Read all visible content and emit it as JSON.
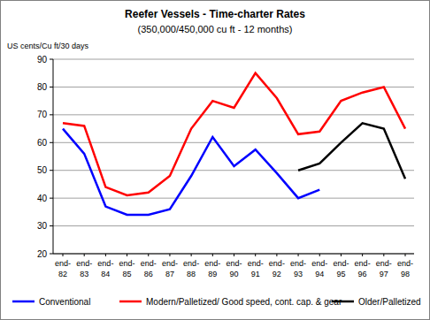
{
  "chart_data": {
    "type": "line",
    "title": "Reefer Vessels - Time-charter Rates",
    "subtitle": "(350,000/450,000 cu ft - 12 months)",
    "y_label": "US cents/Cu ft/30 days",
    "categories": [
      "end-82",
      "end-83",
      "end-84",
      "end-85",
      "end-86",
      "end-87",
      "end-88",
      "end-89",
      "end-90",
      "end-91",
      "end-92",
      "end-93",
      "end-94",
      "end-95",
      "end-96",
      "end-97",
      "end-98"
    ],
    "series": [
      {
        "name": "Conventional",
        "color": "#0000ff",
        "values": [
          65,
          56,
          37,
          34,
          34,
          36,
          48,
          62,
          51.5,
          57.5,
          49,
          40,
          43,
          null,
          null,
          null,
          null
        ]
      },
      {
        "name": "Modern/Palletized/ Good speed, cont. cap. & gear",
        "color": "#ff0000",
        "values": [
          67,
          66,
          44,
          41,
          42,
          48,
          65,
          75,
          72.5,
          85,
          76,
          63,
          64,
          75,
          78,
          80,
          65
        ]
      },
      {
        "name": "Older/Palletized",
        "color": "#000000",
        "values": [
          null,
          null,
          null,
          null,
          null,
          null,
          null,
          null,
          null,
          null,
          null,
          50,
          52.5,
          60,
          67,
          65,
          47
        ]
      }
    ],
    "ylim": [
      20,
      90
    ],
    "yticks": [
      20,
      30,
      40,
      50,
      60,
      70,
      80,
      90
    ],
    "grid": true,
    "legend": "bottom"
  }
}
